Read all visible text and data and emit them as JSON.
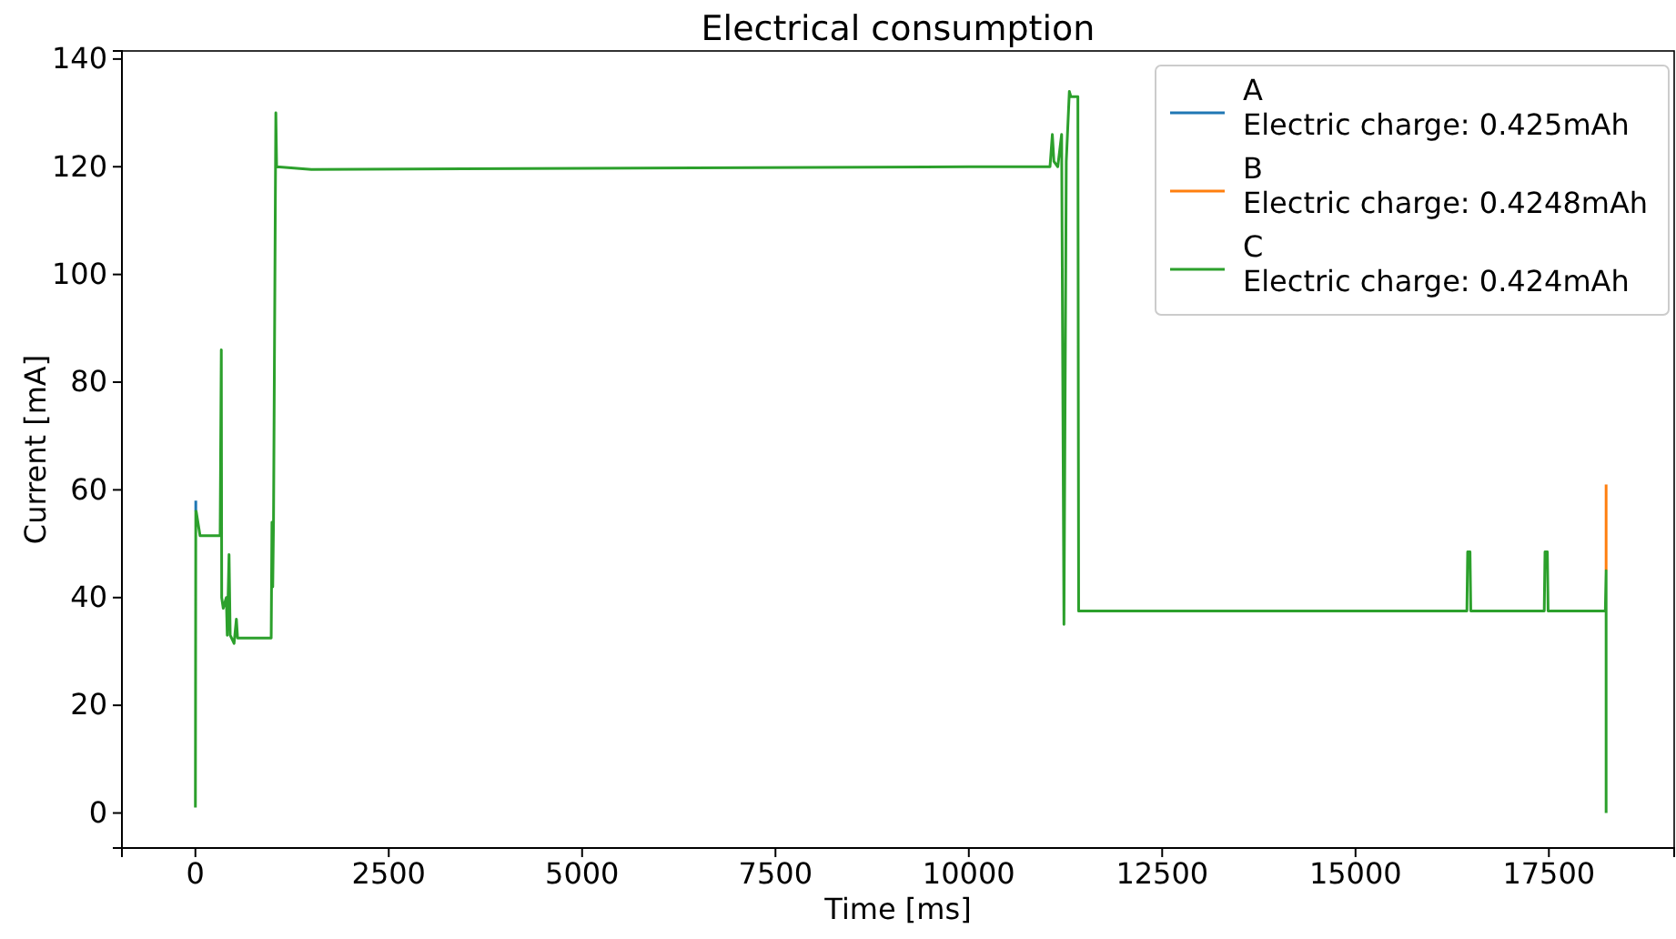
{
  "chart_data": {
    "type": "line",
    "title": "Electrical consumption",
    "xlabel": "Time [ms]",
    "ylabel": "Current [mA]",
    "series": [
      {
        "name": "A\nElectric charge: 0.425mAh",
        "color": "#1f77b4",
        "x": [
          5,
          5
        ],
        "values": [
          56,
          58
        ]
      },
      {
        "name": "B\nElectric charge: 0.4248mAh",
        "color": "#ff7f0e",
        "x": [
          18240,
          18240
        ],
        "values": [
          45,
          61
        ]
      },
      {
        "name": "C\nElectric charge: 0.424mAh",
        "color": "#2ca02c",
        "x": [
          0,
          5,
          10,
          60,
          320,
          335,
          340,
          360,
          400,
          412,
          435,
          450,
          500,
          530,
          545,
          600,
          980,
          990,
          1000,
          1010,
          1040,
          1050,
          1500,
          5000,
          10000,
          11050,
          11080,
          11100,
          11150,
          11200,
          11230,
          11260,
          11300,
          11320,
          11410,
          11420,
          16440,
          16450,
          16480,
          16490,
          17440,
          17450,
          17480,
          17490,
          18230,
          18240,
          18240
        ],
        "values": [
          1,
          56,
          56,
          51.5,
          51.5,
          86,
          40,
          38,
          40,
          33,
          48,
          33,
          31.5,
          36,
          32.5,
          32.5,
          32.5,
          54,
          42,
          54,
          130,
          120,
          119.5,
          119.7,
          120,
          120,
          126,
          121,
          120,
          126,
          35,
          121,
          134,
          133,
          133,
          37.5,
          37.5,
          48.5,
          48.5,
          37.5,
          37.5,
          48.5,
          48.5,
          37.5,
          37.5,
          45,
          0
        ]
      }
    ],
    "xlim": [
      -950,
      19120
    ],
    "ylim": [
      -6.5,
      141.5
    ],
    "xticks": [
      0,
      2500,
      5000,
      7500,
      10000,
      12500,
      15000,
      17500
    ],
    "yticks": [
      0,
      20,
      40,
      60,
      80,
      100,
      120,
      140
    ],
    "grid": false,
    "legend": "top right",
    "marker": "none",
    "line_style": "solid"
  }
}
